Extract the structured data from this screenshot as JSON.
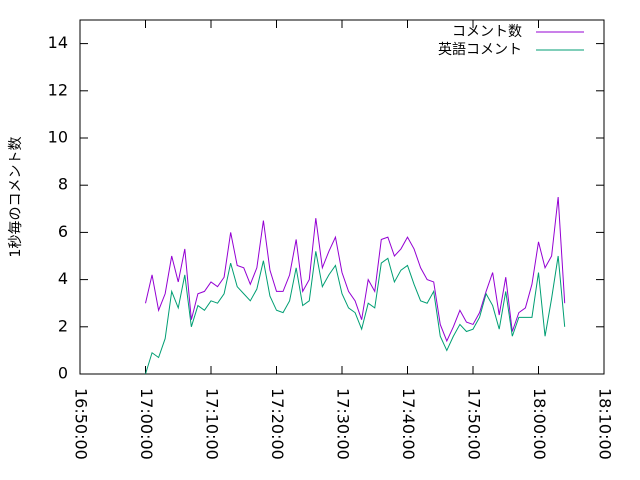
{
  "chart_data": {
    "type": "line",
    "ylabel": "1秒毎のコメント数",
    "x": [
      "17:00:00",
      "17:01:00",
      "17:02:00",
      "17:03:00",
      "17:04:00",
      "17:05:00",
      "17:06:00",
      "17:07:00",
      "17:08:00",
      "17:09:00",
      "17:10:00",
      "17:11:00",
      "17:12:00",
      "17:13:00",
      "17:14:00",
      "17:15:00",
      "17:16:00",
      "17:17:00",
      "17:18:00",
      "17:19:00",
      "17:20:00",
      "17:21:00",
      "17:22:00",
      "17:23:00",
      "17:24:00",
      "17:25:00",
      "17:26:00",
      "17:27:00",
      "17:28:00",
      "17:29:00",
      "17:30:00",
      "17:31:00",
      "17:32:00",
      "17:33:00",
      "17:34:00",
      "17:35:00",
      "17:36:00",
      "17:37:00",
      "17:38:00",
      "17:39:00",
      "17:40:00",
      "17:41:00",
      "17:42:00",
      "17:43:00",
      "17:44:00",
      "17:45:00",
      "17:46:00",
      "17:47:00",
      "17:48:00",
      "17:49:00",
      "17:50:00",
      "17:51:00",
      "17:52:00",
      "17:53:00",
      "17:54:00",
      "17:55:00",
      "17:56:00",
      "17:57:00",
      "17:58:00",
      "17:59:00",
      "18:00:00",
      "18:01:00",
      "18:02:00",
      "18:03:00",
      "18:04:00"
    ],
    "series": [
      {
        "name": "コメント数",
        "color": "#9400d3",
        "values": [
          3.0,
          4.2,
          2.7,
          3.4,
          5.0,
          3.9,
          5.3,
          2.3,
          3.4,
          3.5,
          3.9,
          3.7,
          4.1,
          6.0,
          4.6,
          4.5,
          3.8,
          4.5,
          6.5,
          4.4,
          3.5,
          3.5,
          4.2,
          5.7,
          3.5,
          4.0,
          6.6,
          4.5,
          5.2,
          5.8,
          4.3,
          3.5,
          3.1,
          2.3,
          4.0,
          3.5,
          5.7,
          5.8,
          5.0,
          5.3,
          5.8,
          5.3,
          4.5,
          4.0,
          3.9,
          2.1,
          1.4,
          2.0,
          2.7,
          2.2,
          2.1,
          2.6,
          3.5,
          4.3,
          2.5,
          4.1,
          1.8,
          2.6,
          2.8,
          3.8,
          5.6,
          4.5,
          5.0,
          7.5,
          3.0
        ]
      },
      {
        "name": "英語コメント",
        "color": "#009e73",
        "values": [
          0.0,
          0.9,
          0.7,
          1.5,
          3.5,
          2.8,
          4.2,
          2.0,
          2.9,
          2.7,
          3.1,
          3.0,
          3.4,
          4.7,
          3.7,
          3.4,
          3.1,
          3.6,
          4.8,
          3.3,
          2.7,
          2.6,
          3.1,
          4.5,
          2.9,
          3.1,
          5.2,
          3.7,
          4.2,
          4.6,
          3.4,
          2.8,
          2.6,
          1.9,
          3.0,
          2.8,
          4.7,
          4.9,
          3.9,
          4.4,
          4.6,
          3.8,
          3.1,
          3.0,
          3.5,
          1.6,
          1.0,
          1.6,
          2.1,
          1.8,
          1.9,
          2.4,
          3.4,
          2.9,
          1.9,
          3.5,
          1.6,
          2.4,
          2.4,
          2.4,
          4.3,
          1.6,
          3.2,
          5.0,
          2.0
        ]
      }
    ],
    "xlim": [
      "16:50:00",
      "18:10:00"
    ],
    "xticks": [
      "16:50:00",
      "17:00:00",
      "17:10:00",
      "17:20:00",
      "17:30:00",
      "17:40:00",
      "17:50:00",
      "18:00:00",
      "18:10:00"
    ],
    "ylim": [
      0,
      15
    ],
    "yticks": [
      0,
      2,
      4,
      6,
      8,
      10,
      12,
      14
    ],
    "grid": false,
    "legend": "top-right"
  }
}
